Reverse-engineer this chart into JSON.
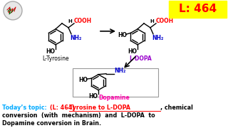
{
  "bg_color": "#ffffff",
  "label_badge_bg": "#ffff00",
  "label_badge_text": "L: 464",
  "label_badge_color": "#ff0000",
  "title_color": "#00aaff",
  "underline_text": "Tyrosine to L-DOPA",
  "topic_prefix": "Today’s topic: ",
  "topic_L464": "(L: 464) ",
  "ltyrosine_label": "L-Tyrosine",
  "ldopa_label": "L-DOPA",
  "dopamine_label": "Dopamine",
  "ldopa_label_color": "#9900cc",
  "dopamine_label_color": "#ff00aa"
}
